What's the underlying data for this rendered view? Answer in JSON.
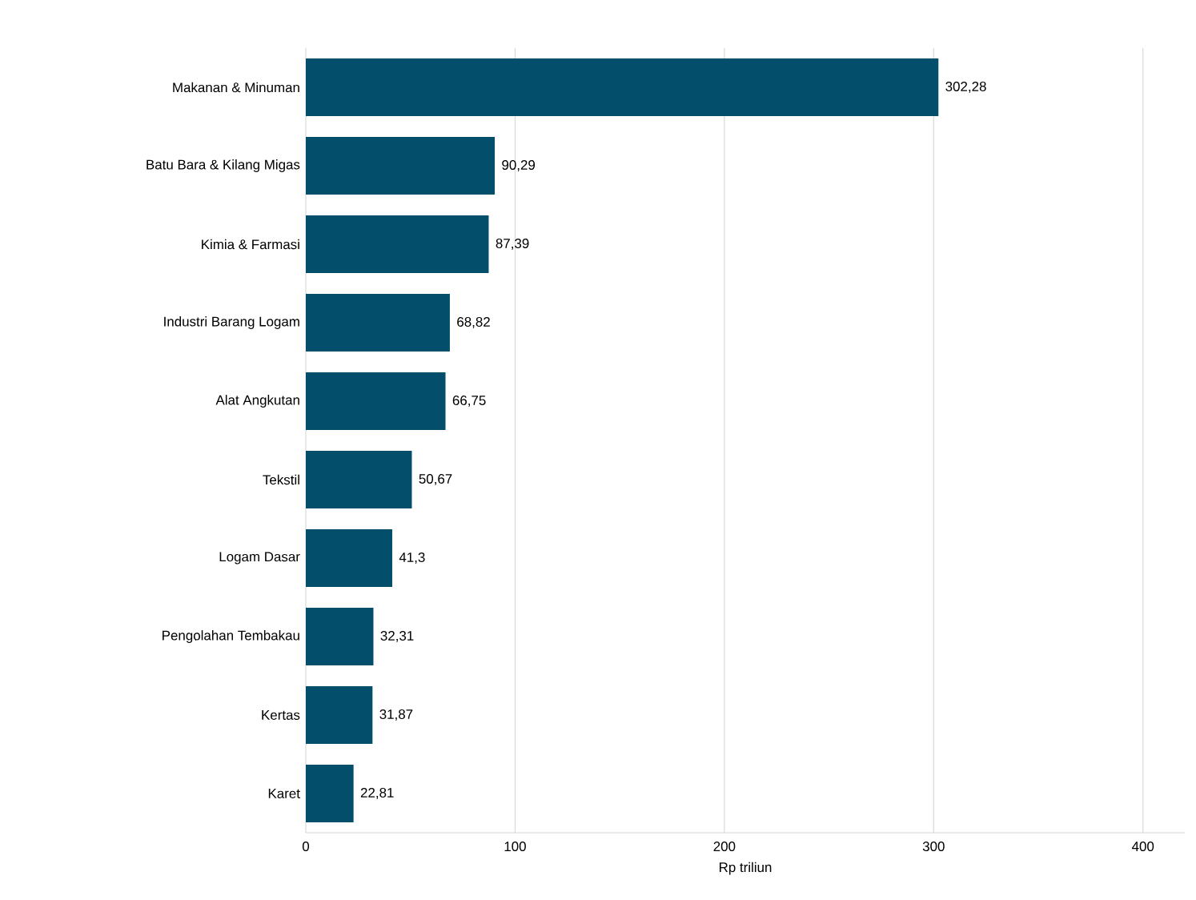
{
  "chart_data": {
    "type": "bar",
    "orientation": "horizontal",
    "xlabel": "Rp triliun",
    "categories": [
      "Makanan & Minuman",
      "Batu Bara & Kilang Migas",
      "Kimia & Farmasi",
      "Industri Barang Logam",
      "Alat Angkutan",
      "Tekstil",
      "Logam Dasar",
      "Pengolahan Tembakau",
      "Kertas",
      "Karet"
    ],
    "values": [
      302.28,
      90.29,
      87.39,
      68.82,
      66.75,
      50.67,
      41.3,
      32.31,
      31.87,
      22.81
    ],
    "value_labels": [
      "302,28",
      "90,29",
      "87,39",
      "68,82",
      "66,75",
      "50,67",
      "41,3",
      "32,31",
      "31,87",
      "22,81"
    ],
    "color": "#034e6b",
    "xlim": [
      0,
      420
    ],
    "xticks": [
      0,
      100,
      200,
      300,
      400
    ],
    "grid": "x"
  }
}
